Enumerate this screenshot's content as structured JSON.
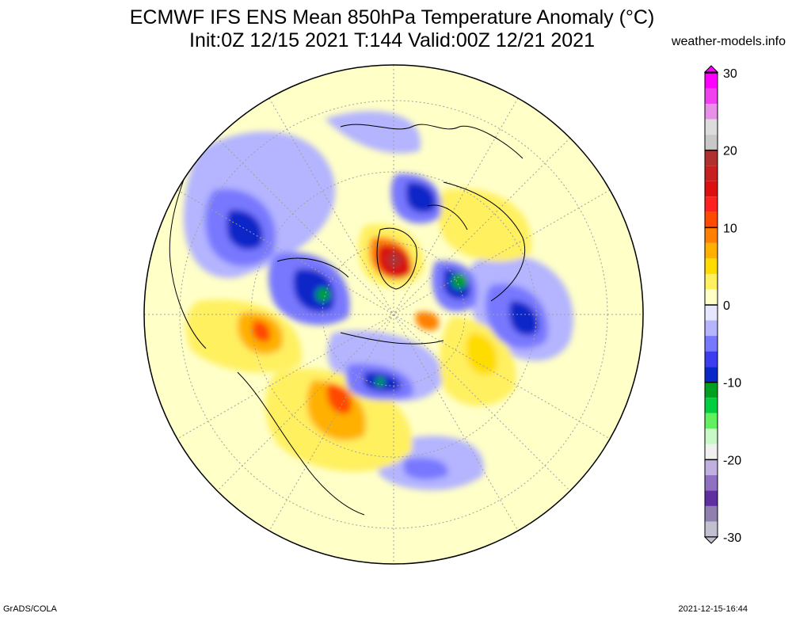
{
  "header": {
    "title_line1": "ECMWF IFS ENS Mean 850hPa Temperature Anomaly (°C)",
    "title_line2": "Init:0Z 12/15 2021  T:144 Valid:00Z 12/21 2021",
    "site": "weather-models.info"
  },
  "footer": {
    "credit": "GrADS/COLA",
    "timestamp": "2021-12-15-16:44"
  },
  "map": {
    "projection": "polar-stereographic",
    "hemisphere": "north",
    "variable": "850hPa temperature anomaly",
    "units": "°C"
  },
  "colorbar": {
    "min": -30,
    "max": 30,
    "tick_labels": [
      "30",
      "20",
      "10",
      "0",
      "-10",
      "-20",
      "-30"
    ],
    "tick_values": [
      30,
      20,
      10,
      0,
      -10,
      -20,
      -30
    ],
    "bins": [
      {
        "lo": 28,
        "hi": 30,
        "color": "#ff00ff"
      },
      {
        "lo": 26,
        "hi": 28,
        "color": "#f040f0"
      },
      {
        "lo": 24,
        "hi": 26,
        "color": "#e890e8"
      },
      {
        "lo": 22,
        "hi": 24,
        "color": "#dcdcdc"
      },
      {
        "lo": 20,
        "hi": 22,
        "color": "#c8c8c8"
      },
      {
        "lo": 18,
        "hi": 20,
        "color": "#b03030"
      },
      {
        "lo": 16,
        "hi": 18,
        "color": "#c82020"
      },
      {
        "lo": 14,
        "hi": 16,
        "color": "#dc1010"
      },
      {
        "lo": 12,
        "hi": 14,
        "color": "#ff2020"
      },
      {
        "lo": 10,
        "hi": 12,
        "color": "#ff4a00"
      },
      {
        "lo": 8,
        "hi": 10,
        "color": "#ff8000"
      },
      {
        "lo": 6,
        "hi": 8,
        "color": "#ffb000"
      },
      {
        "lo": 4,
        "hi": 6,
        "color": "#ffdc00"
      },
      {
        "lo": 2,
        "hi": 4,
        "color": "#fff060"
      },
      {
        "lo": 0,
        "hi": 2,
        "color": "#ffffc8"
      },
      {
        "lo": -2,
        "hi": 0,
        "color": "#e6e6ff"
      },
      {
        "lo": -4,
        "hi": -2,
        "color": "#b4b4ff"
      },
      {
        "lo": -6,
        "hi": -4,
        "color": "#7878ff"
      },
      {
        "lo": -8,
        "hi": -6,
        "color": "#3c3cf0"
      },
      {
        "lo": -10,
        "hi": -8,
        "color": "#0a28c8"
      },
      {
        "lo": -12,
        "hi": -10,
        "color": "#00a020"
      },
      {
        "lo": -14,
        "hi": -12,
        "color": "#00d040"
      },
      {
        "lo": -16,
        "hi": -14,
        "color": "#60f060"
      },
      {
        "lo": -18,
        "hi": -16,
        "color": "#c8f8c8"
      },
      {
        "lo": -20,
        "hi": -18,
        "color": "#f0f0f0"
      },
      {
        "lo": -22,
        "hi": -20,
        "color": "#c0b0e0"
      },
      {
        "lo": -24,
        "hi": -22,
        "color": "#9070c0"
      },
      {
        "lo": -26,
        "hi": -24,
        "color": "#6030a0"
      },
      {
        "lo": -28,
        "hi": -26,
        "color": "#9080b0"
      },
      {
        "lo": -30,
        "hi": -28,
        "color": "#c0c0d0"
      }
    ]
  },
  "anomaly_regions": [
    {
      "color": "#3c3cf0",
      "level": -8
    },
    {
      "color": "#0a28c8",
      "level": -10
    },
    {
      "color": "#00a020",
      "level": -12
    },
    {
      "color": "#7878ff",
      "level": -5
    },
    {
      "color": "#b4b4ff",
      "level": -3
    },
    {
      "color": "#ffdc00",
      "level": 5
    },
    {
      "color": "#ffb000",
      "level": 7
    },
    {
      "color": "#ff8000",
      "level": 9
    },
    {
      "color": "#dc1010",
      "level": 15
    },
    {
      "color": "#fff060",
      "level": 3
    }
  ]
}
